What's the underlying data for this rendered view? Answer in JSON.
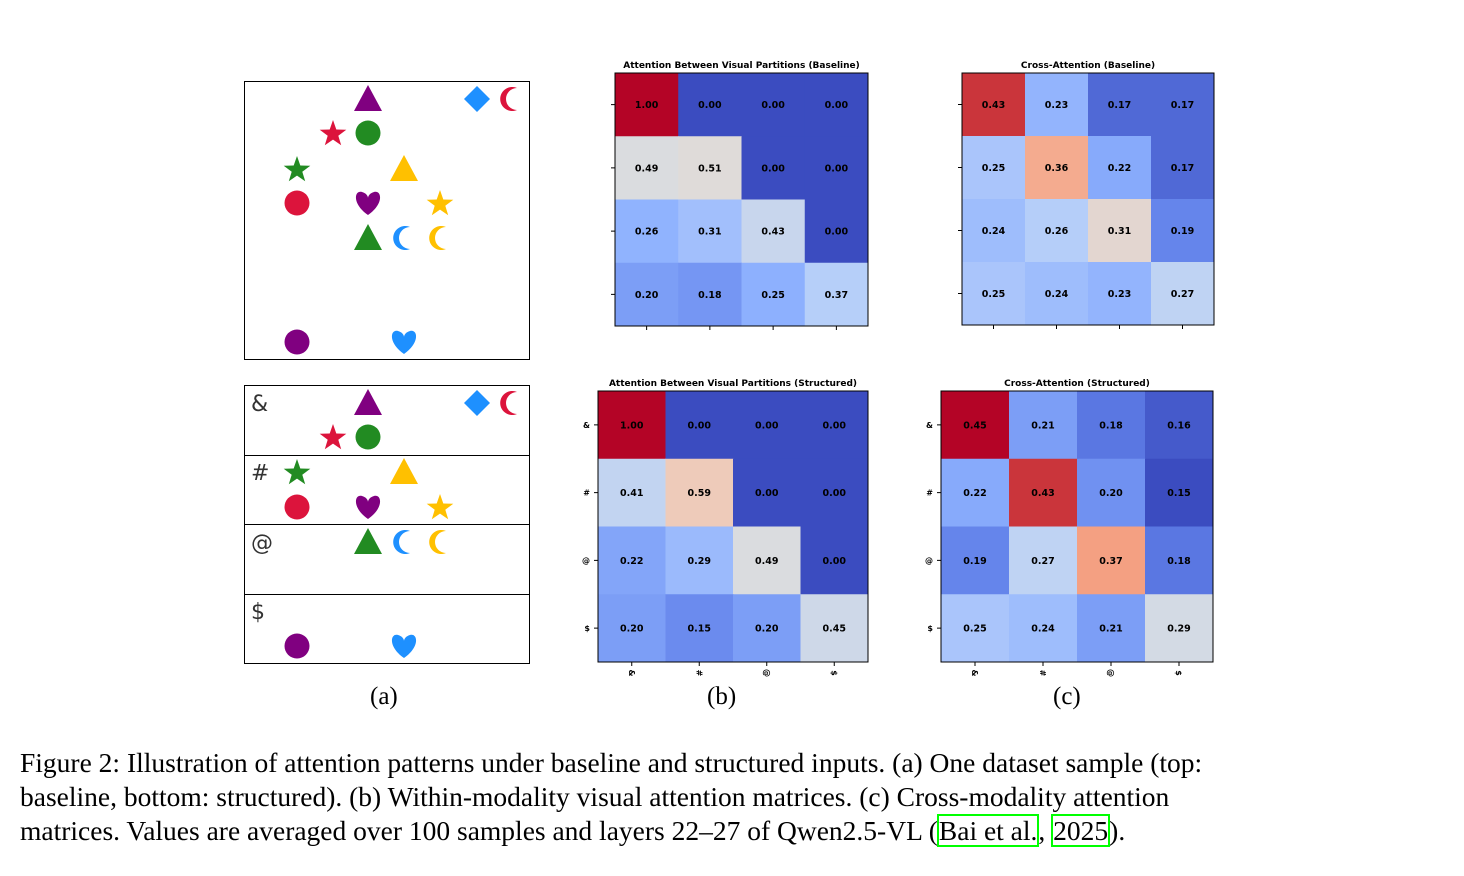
{
  "panel_a": {
    "sublabel": "(a)",
    "partition_labels": [
      "&",
      "#",
      "@",
      "$"
    ],
    "shapes": [
      {
        "shape": "triangle",
        "color": "#800080",
        "row": 0
      },
      {
        "shape": "diamond",
        "color": "#1e90ff",
        "row": 0
      },
      {
        "shape": "crescent",
        "color": "#dc143c",
        "row": 0
      },
      {
        "shape": "star",
        "color": "#dc143c",
        "row": 0
      },
      {
        "shape": "circle",
        "color": "#228b22",
        "row": 0
      },
      {
        "shape": "star",
        "color": "#228b22",
        "row": 1
      },
      {
        "shape": "triangle",
        "color": "#ffc000",
        "row": 1
      },
      {
        "shape": "circle",
        "color": "#dc143c",
        "row": 1
      },
      {
        "shape": "heart",
        "color": "#800080",
        "row": 1
      },
      {
        "shape": "star",
        "color": "#ffc000",
        "row": 1
      },
      {
        "shape": "triangle",
        "color": "#228b22",
        "row": 2
      },
      {
        "shape": "crescent",
        "color": "#1e90ff",
        "row": 2
      },
      {
        "shape": "crescent",
        "color": "#ffc000",
        "row": 2
      },
      {
        "shape": "circle",
        "color": "#800080",
        "row": 3
      },
      {
        "shape": "heart",
        "color": "#1e90ff",
        "row": 3
      }
    ]
  },
  "panel_b": {
    "sublabel": "(b)"
  },
  "panel_c": {
    "sublabel": "(c)"
  },
  "chart_data": [
    {
      "type": "heatmap",
      "title": "Attention Between Visual Partitions (Baseline)",
      "row_labels": [],
      "col_labels": [],
      "values": [
        [
          1.0,
          0.0,
          0.0,
          0.0
        ],
        [
          0.49,
          0.51,
          0.0,
          0.0
        ],
        [
          0.26,
          0.31,
          0.43,
          0.0
        ],
        [
          0.2,
          0.18,
          0.25,
          0.37
        ]
      ],
      "colormap": "coolwarm",
      "range": [
        0,
        1
      ]
    },
    {
      "type": "heatmap",
      "title": "Cross-Attention (Baseline)",
      "row_labels": [],
      "col_labels": [],
      "values": [
        [
          0.43,
          0.23,
          0.17,
          0.17
        ],
        [
          0.25,
          0.36,
          0.22,
          0.17
        ],
        [
          0.24,
          0.26,
          0.31,
          0.19
        ],
        [
          0.25,
          0.24,
          0.23,
          0.27
        ]
      ],
      "colormap": "coolwarm",
      "range": [
        0.15,
        0.45
      ]
    },
    {
      "type": "heatmap",
      "title": "Attention Between Visual Partitions (Structured)",
      "row_labels": [
        "&",
        "#",
        "@",
        "$"
      ],
      "col_labels": [
        "&",
        "#",
        "@",
        "$"
      ],
      "values": [
        [
          1.0,
          0.0,
          0.0,
          0.0
        ],
        [
          0.41,
          0.59,
          0.0,
          0.0
        ],
        [
          0.22,
          0.29,
          0.49,
          0.0
        ],
        [
          0.2,
          0.15,
          0.2,
          0.45
        ]
      ],
      "colormap": "coolwarm",
      "range": [
        0,
        1
      ]
    },
    {
      "type": "heatmap",
      "title": "Cross-Attention (Structured)",
      "row_labels": [
        "&",
        "#",
        "@",
        "$"
      ],
      "col_labels": [
        "&",
        "#",
        "@",
        "$"
      ],
      "values": [
        [
          0.45,
          0.21,
          0.18,
          0.16
        ],
        [
          0.22,
          0.43,
          0.2,
          0.15
        ],
        [
          0.19,
          0.27,
          0.37,
          0.18
        ],
        [
          0.25,
          0.24,
          0.21,
          0.29
        ]
      ],
      "colormap": "coolwarm",
      "range": [
        0.15,
        0.45
      ]
    }
  ],
  "caption": {
    "line1": "Figure 2: Illustration of attention patterns under baseline and structured inputs. (a) One dataset sample (top:",
    "line2": "baseline, bottom: structured). (b) Within-modality visual attention matrices. (c) Cross-modality attention",
    "line3_prefix": "matrices. Values are averaged over 100 samples and layers 22–27 of Qwen2.5-VL (",
    "cite_author": "Bai et al.",
    "cite_sep": ", ",
    "cite_year": "2025",
    "line3_suffix": ")."
  }
}
